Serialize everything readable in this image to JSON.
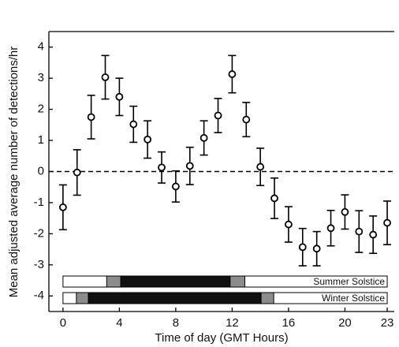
{
  "chart_data": {
    "type": "scatter",
    "xlabel": "Time of day (GMT Hours)",
    "ylabel": "Mean adjusted average number of detections/hr",
    "x": [
      0,
      1,
      2,
      3,
      4,
      5,
      6,
      7,
      8,
      9,
      10,
      11,
      12,
      13,
      14,
      15,
      16,
      17,
      18,
      19,
      20,
      21,
      22,
      23
    ],
    "values": [
      -1.15,
      -0.03,
      1.75,
      3.03,
      2.4,
      1.52,
      1.03,
      0.13,
      -0.48,
      0.18,
      1.08,
      1.8,
      3.13,
      1.67,
      0.15,
      -0.86,
      -1.7,
      -2.43,
      -2.48,
      -1.82,
      -1.3,
      -1.93,
      -2.03,
      -1.65
    ],
    "errors": [
      0.72,
      0.73,
      0.7,
      0.7,
      0.6,
      0.58,
      0.6,
      0.5,
      0.5,
      0.6,
      0.55,
      0.55,
      0.6,
      0.55,
      0.6,
      0.65,
      0.57,
      0.6,
      0.55,
      0.57,
      0.55,
      0.67,
      0.6,
      0.7
    ],
    "color": "#000000",
    "xlim": [
      -1,
      23.5
    ],
    "xticks": [
      0,
      4,
      8,
      12,
      16,
      20,
      23
    ],
    "ylim": [
      -4.5,
      4.5
    ],
    "yticks": [
      -4,
      -3,
      -2,
      -1,
      0,
      1,
      2,
      3,
      4
    ],
    "reference_line": 0,
    "bands": [
      {
        "label": "Summer Solstice",
        "range": [
          0,
          23
        ],
        "twilight": [
          [
            3.1,
            4.1
          ],
          [
            11.85,
            12.9
          ]
        ],
        "night": [
          4.1,
          11.85
        ]
      },
      {
        "label": "Winter Solstice",
        "range": [
          0,
          23
        ],
        "twilight": [
          [
            0.95,
            1.8
          ],
          [
            14.05,
            14.95
          ]
        ],
        "night": [
          1.8,
          14.05
        ]
      }
    ]
  }
}
